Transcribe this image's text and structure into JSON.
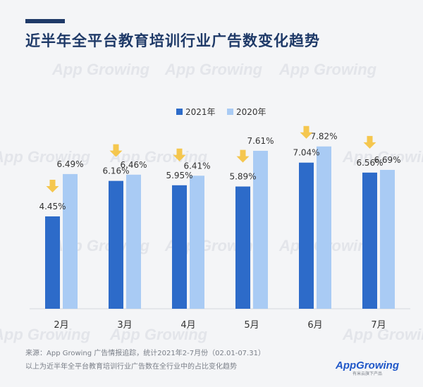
{
  "title": "近半年全平台教育培训行业广告数变化趋势",
  "watermark": "App Growing",
  "chart_data": {
    "type": "bar",
    "categories": [
      "2月",
      "3月",
      "4月",
      "5月",
      "6月",
      "7月"
    ],
    "series": [
      {
        "name": "2021年",
        "values": [
          4.45,
          6.16,
          5.95,
          5.89,
          7.04,
          6.56
        ],
        "labels": [
          "4.45%",
          "6.16%",
          "5.95%",
          "5.89%",
          "7.04%",
          "6.56%"
        ],
        "color": "#2d6bc9"
      },
      {
        "name": "2020年",
        "values": [
          6.49,
          6.46,
          6.41,
          7.61,
          7.82,
          6.69
        ],
        "labels": [
          "6.49%",
          "6.46%",
          "6.41%",
          "7.61%",
          "7.82%",
          "6.69%"
        ],
        "color": "#a9cbf4"
      }
    ],
    "ylim": [
      0,
      9
    ],
    "legend_position": "top-center",
    "down_arrow_color": "#f5c23c"
  },
  "footer": {
    "source": "来源：App Growing 广告情报追踪，统计2021年2-7月份（02.01-07.31）",
    "note": "以上为近半年全平台教育培训行业广告数在全行业中的占比变化趋势"
  },
  "logo": {
    "name": "AppGrowing",
    "tagline": "有米云旗下产品"
  }
}
